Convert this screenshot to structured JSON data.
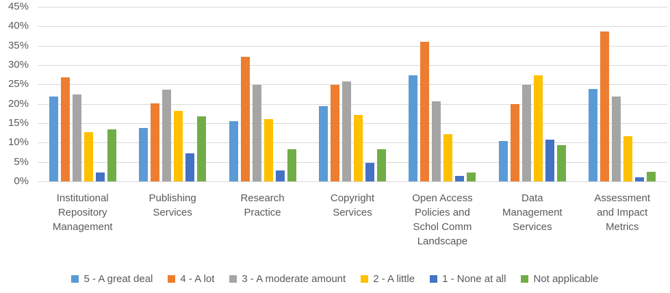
{
  "chart_data": {
    "type": "bar",
    "title": "",
    "xlabel": "",
    "ylabel": "",
    "categories": [
      "Institutional Repository Management",
      "Publishing Services",
      "Research Practice",
      "Copyright Services",
      "Open Access Policies and Schol Comm Landscape",
      "Data Management Services",
      "Assessment and Impact Metrics"
    ],
    "series": [
      {
        "name": "5 - A great deal",
        "color": "#5B9BD5",
        "values": [
          21.8,
          13.7,
          15.5,
          19.4,
          27.3,
          10.4,
          23.8
        ]
      },
      {
        "name": "4 - A lot",
        "color": "#ED7D31",
        "values": [
          26.8,
          20.1,
          32.1,
          24.8,
          36.0,
          20.0,
          38.6
        ]
      },
      {
        "name": "3 - A moderate amount",
        "color": "#A5A5A5",
        "values": [
          22.4,
          23.7,
          24.9,
          25.7,
          20.7,
          24.9,
          21.9
        ]
      },
      {
        "name": "2 - A little",
        "color": "#FFC000",
        "values": [
          12.7,
          18.2,
          16.1,
          17.2,
          12.1,
          27.4,
          11.6
        ]
      },
      {
        "name": "1 - None at all",
        "color": "#4472C4",
        "values": [
          2.3,
          7.3,
          2.9,
          4.7,
          1.4,
          10.8,
          1.1
        ]
      },
      {
        "name": "Not applicable",
        "color": "#70AD47",
        "values": [
          13.5,
          16.8,
          8.3,
          8.3,
          2.3,
          9.3,
          2.4
        ]
      }
    ],
    "y_axis": {
      "min": 0,
      "max": 45,
      "step": 5,
      "tick_labels": [
        "0%",
        "5%",
        "10%",
        "15%",
        "20%",
        "25%",
        "30%",
        "35%",
        "40%",
        "45%"
      ]
    },
    "grid": true,
    "legend_position": "bottom",
    "colors": {
      "text": "#595959",
      "gridline": "#D9D9D9",
      "background": "#FFFFFF"
    }
  }
}
